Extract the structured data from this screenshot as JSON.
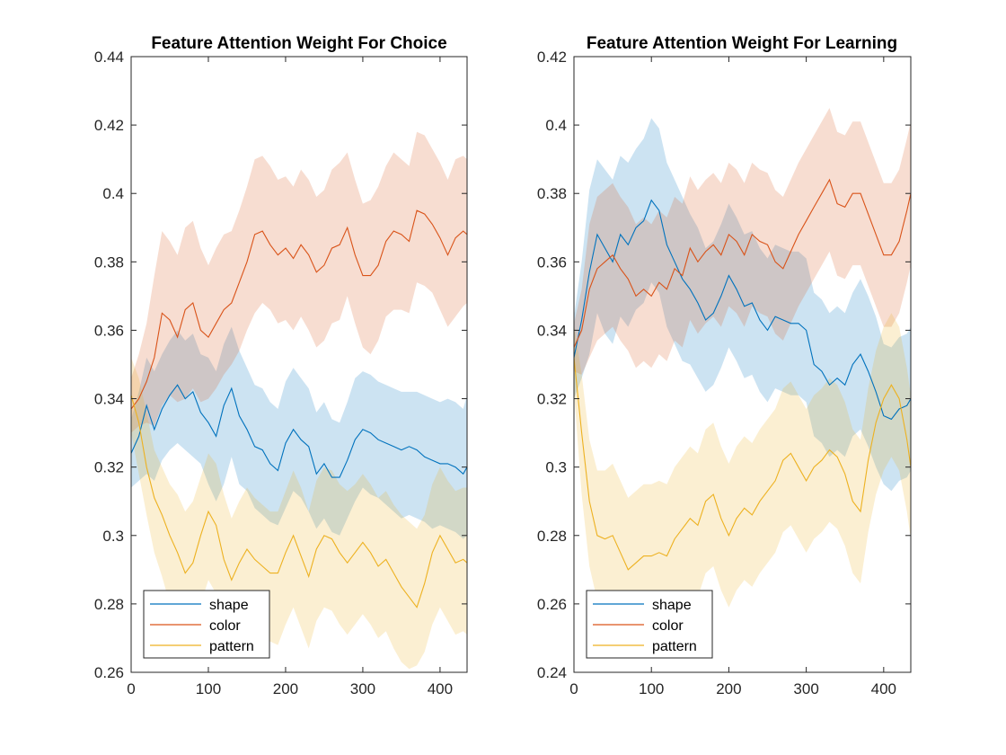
{
  "colors": {
    "shape": "#0072BD",
    "color": "#D95319",
    "pattern": "#EDB120",
    "axis": "#262626"
  },
  "chart_data": [
    {
      "type": "line",
      "title": "Feature Attention Weight For Choice",
      "xlabel": "",
      "ylabel": "",
      "xlim": [
        0,
        435
      ],
      "ylim": [
        0.26,
        0.44
      ],
      "xticks": [
        0,
        100,
        200,
        300,
        400
      ],
      "yticks": [
        0.26,
        0.28,
        0.3,
        0.32,
        0.34,
        0.36,
        0.38,
        0.4,
        0.42,
        0.44
      ],
      "ytick_labels": [
        "0.26",
        "0.28",
        "0.3",
        "0.32",
        "0.34",
        "0.36",
        "0.38",
        "0.4",
        "0.42",
        "0.44"
      ],
      "grid": false,
      "legend_position": "bottom-left",
      "shaded_bands": true,
      "x": [
        0,
        10,
        20,
        30,
        40,
        50,
        60,
        70,
        80,
        90,
        100,
        110,
        120,
        130,
        140,
        150,
        160,
        170,
        180,
        190,
        200,
        210,
        220,
        230,
        240,
        250,
        260,
        270,
        280,
        290,
        300,
        310,
        320,
        330,
        340,
        350,
        360,
        370,
        380,
        390,
        400,
        410,
        420,
        430,
        435
      ],
      "series": [
        {
          "name": "shape",
          "color_key": "shape",
          "values": [
            0.324,
            0.329,
            0.338,
            0.331,
            0.337,
            0.341,
            0.344,
            0.34,
            0.342,
            0.336,
            0.333,
            0.329,
            0.338,
            0.343,
            0.335,
            0.331,
            0.326,
            0.325,
            0.321,
            0.319,
            0.327,
            0.331,
            0.328,
            0.326,
            0.318,
            0.321,
            0.317,
            0.317,
            0.322,
            0.328,
            0.331,
            0.33,
            0.328,
            0.327,
            0.326,
            0.325,
            0.326,
            0.325,
            0.323,
            0.322,
            0.321,
            0.321,
            0.32,
            0.318,
            0.32
          ],
          "lower": [
            0.314,
            0.316,
            0.318,
            0.316,
            0.322,
            0.325,
            0.327,
            0.325,
            0.323,
            0.321,
            0.315,
            0.31,
            0.315,
            0.323,
            0.315,
            0.313,
            0.308,
            0.306,
            0.304,
            0.303,
            0.308,
            0.313,
            0.311,
            0.307,
            0.302,
            0.305,
            0.301,
            0.3,
            0.305,
            0.31,
            0.314,
            0.312,
            0.311,
            0.309,
            0.307,
            0.305,
            0.306,
            0.305,
            0.304,
            0.302,
            0.303,
            0.302,
            0.301,
            0.299,
            0.3
          ],
          "upper": [
            0.334,
            0.342,
            0.352,
            0.348,
            0.353,
            0.357,
            0.36,
            0.357,
            0.359,
            0.353,
            0.352,
            0.348,
            0.356,
            0.361,
            0.354,
            0.349,
            0.344,
            0.343,
            0.339,
            0.337,
            0.345,
            0.349,
            0.346,
            0.343,
            0.336,
            0.339,
            0.334,
            0.333,
            0.339,
            0.346,
            0.348,
            0.347,
            0.345,
            0.344,
            0.343,
            0.342,
            0.342,
            0.342,
            0.341,
            0.34,
            0.339,
            0.34,
            0.339,
            0.337,
            0.341
          ]
        },
        {
          "name": "color",
          "color_key": "color",
          "values": [
            0.337,
            0.34,
            0.345,
            0.352,
            0.365,
            0.363,
            0.358,
            0.366,
            0.368,
            0.36,
            0.358,
            0.362,
            0.366,
            0.368,
            0.374,
            0.38,
            0.388,
            0.389,
            0.385,
            0.382,
            0.384,
            0.381,
            0.385,
            0.382,
            0.377,
            0.379,
            0.384,
            0.385,
            0.39,
            0.382,
            0.376,
            0.376,
            0.379,
            0.386,
            0.389,
            0.388,
            0.386,
            0.395,
            0.394,
            0.391,
            0.387,
            0.382,
            0.387,
            0.389,
            0.388
          ],
          "lower": [
            0.33,
            0.332,
            0.333,
            0.332,
            0.338,
            0.341,
            0.339,
            0.34,
            0.343,
            0.339,
            0.34,
            0.343,
            0.347,
            0.35,
            0.354,
            0.36,
            0.365,
            0.368,
            0.366,
            0.362,
            0.363,
            0.36,
            0.364,
            0.36,
            0.355,
            0.357,
            0.362,
            0.363,
            0.37,
            0.362,
            0.355,
            0.353,
            0.357,
            0.364,
            0.366,
            0.366,
            0.365,
            0.374,
            0.373,
            0.371,
            0.366,
            0.361,
            0.364,
            0.367,
            0.368
          ],
          "upper": [
            0.346,
            0.353,
            0.362,
            0.376,
            0.389,
            0.386,
            0.382,
            0.39,
            0.392,
            0.384,
            0.379,
            0.384,
            0.388,
            0.389,
            0.395,
            0.402,
            0.41,
            0.411,
            0.408,
            0.404,
            0.405,
            0.402,
            0.407,
            0.404,
            0.399,
            0.401,
            0.407,
            0.409,
            0.412,
            0.404,
            0.397,
            0.398,
            0.402,
            0.408,
            0.412,
            0.41,
            0.408,
            0.418,
            0.417,
            0.413,
            0.409,
            0.404,
            0.41,
            0.411,
            0.41
          ]
        },
        {
          "name": "pattern",
          "color_key": "pattern",
          "values": [
            0.341,
            0.333,
            0.32,
            0.311,
            0.306,
            0.3,
            0.295,
            0.289,
            0.292,
            0.3,
            0.307,
            0.303,
            0.293,
            0.287,
            0.292,
            0.296,
            0.293,
            0.291,
            0.289,
            0.289,
            0.295,
            0.3,
            0.294,
            0.288,
            0.296,
            0.3,
            0.299,
            0.295,
            0.292,
            0.295,
            0.298,
            0.295,
            0.291,
            0.293,
            0.289,
            0.285,
            0.282,
            0.279,
            0.286,
            0.295,
            0.3,
            0.296,
            0.292,
            0.293,
            0.292
          ],
          "lower": [
            0.33,
            0.318,
            0.306,
            0.295,
            0.288,
            0.28,
            0.275,
            0.269,
            0.272,
            0.28,
            0.287,
            0.283,
            0.272,
            0.266,
            0.271,
            0.276,
            0.273,
            0.271,
            0.269,
            0.268,
            0.274,
            0.279,
            0.273,
            0.267,
            0.275,
            0.279,
            0.278,
            0.274,
            0.271,
            0.274,
            0.277,
            0.274,
            0.27,
            0.272,
            0.267,
            0.263,
            0.261,
            0.262,
            0.266,
            0.274,
            0.279,
            0.275,
            0.271,
            0.272,
            0.271
          ],
          "upper": [
            0.352,
            0.346,
            0.336,
            0.325,
            0.32,
            0.315,
            0.312,
            0.307,
            0.31,
            0.317,
            0.324,
            0.321,
            0.312,
            0.305,
            0.31,
            0.314,
            0.311,
            0.309,
            0.307,
            0.307,
            0.313,
            0.319,
            0.314,
            0.307,
            0.316,
            0.32,
            0.319,
            0.315,
            0.313,
            0.315,
            0.318,
            0.315,
            0.311,
            0.313,
            0.309,
            0.306,
            0.304,
            0.302,
            0.306,
            0.315,
            0.32,
            0.316,
            0.313,
            0.314,
            0.314
          ]
        }
      ]
    },
    {
      "type": "line",
      "title": "Feature Attention Weight For Learning",
      "xlabel": "",
      "ylabel": "",
      "xlim": [
        0,
        435
      ],
      "ylim": [
        0.24,
        0.42
      ],
      "xticks": [
        0,
        100,
        200,
        300,
        400
      ],
      "yticks": [
        0.24,
        0.26,
        0.28,
        0.3,
        0.32,
        0.34,
        0.36,
        0.38,
        0.4,
        0.42
      ],
      "ytick_labels": [
        "0.24",
        "0.26",
        "0.28",
        "0.3",
        "0.32",
        "0.34",
        "0.36",
        "0.38",
        "0.4",
        "0.42"
      ],
      "grid": false,
      "legend_position": "bottom-left",
      "shaded_bands": true,
      "x": [
        0,
        10,
        20,
        30,
        40,
        50,
        60,
        70,
        80,
        90,
        100,
        110,
        120,
        130,
        140,
        150,
        160,
        170,
        180,
        190,
        200,
        210,
        220,
        230,
        240,
        250,
        260,
        270,
        280,
        290,
        300,
        310,
        320,
        330,
        340,
        350,
        360,
        370,
        380,
        390,
        400,
        410,
        420,
        430,
        435
      ],
      "series": [
        {
          "name": "shape",
          "color_key": "shape",
          "values": [
            0.332,
            0.343,
            0.357,
            0.368,
            0.364,
            0.36,
            0.368,
            0.365,
            0.37,
            0.372,
            0.378,
            0.375,
            0.365,
            0.36,
            0.355,
            0.352,
            0.348,
            0.343,
            0.345,
            0.35,
            0.356,
            0.352,
            0.347,
            0.348,
            0.343,
            0.34,
            0.344,
            0.343,
            0.342,
            0.342,
            0.34,
            0.33,
            0.328,
            0.324,
            0.326,
            0.324,
            0.33,
            0.333,
            0.328,
            0.322,
            0.315,
            0.314,
            0.317,
            0.318,
            0.32
          ],
          "lower": [
            0.32,
            0.326,
            0.333,
            0.345,
            0.339,
            0.336,
            0.344,
            0.341,
            0.346,
            0.348,
            0.354,
            0.351,
            0.341,
            0.336,
            0.331,
            0.33,
            0.326,
            0.322,
            0.324,
            0.329,
            0.335,
            0.331,
            0.326,
            0.327,
            0.322,
            0.319,
            0.323,
            0.322,
            0.321,
            0.321,
            0.319,
            0.309,
            0.307,
            0.303,
            0.305,
            0.303,
            0.309,
            0.311,
            0.306,
            0.3,
            0.295,
            0.293,
            0.296,
            0.297,
            0.299
          ],
          "upper": [
            0.344,
            0.36,
            0.381,
            0.39,
            0.387,
            0.384,
            0.391,
            0.389,
            0.393,
            0.396,
            0.402,
            0.399,
            0.389,
            0.384,
            0.379,
            0.374,
            0.37,
            0.364,
            0.366,
            0.371,
            0.377,
            0.373,
            0.368,
            0.369,
            0.364,
            0.361,
            0.365,
            0.364,
            0.363,
            0.363,
            0.361,
            0.351,
            0.349,
            0.345,
            0.347,
            0.345,
            0.351,
            0.355,
            0.35,
            0.344,
            0.336,
            0.335,
            0.338,
            0.339,
            0.341
          ]
        },
        {
          "name": "color",
          "color_key": "color",
          "values": [
            0.335,
            0.34,
            0.352,
            0.358,
            0.36,
            0.362,
            0.358,
            0.355,
            0.35,
            0.352,
            0.35,
            0.354,
            0.352,
            0.358,
            0.356,
            0.364,
            0.36,
            0.363,
            0.365,
            0.362,
            0.368,
            0.366,
            0.362,
            0.368,
            0.366,
            0.365,
            0.36,
            0.358,
            0.363,
            0.368,
            0.372,
            0.376,
            0.38,
            0.384,
            0.377,
            0.376,
            0.38,
            0.38,
            0.374,
            0.368,
            0.362,
            0.362,
            0.366,
            0.375,
            0.38
          ],
          "lower": [
            0.328,
            0.327,
            0.332,
            0.337,
            0.339,
            0.341,
            0.337,
            0.334,
            0.329,
            0.331,
            0.329,
            0.333,
            0.331,
            0.337,
            0.335,
            0.343,
            0.339,
            0.342,
            0.344,
            0.341,
            0.347,
            0.345,
            0.341,
            0.347,
            0.345,
            0.344,
            0.339,
            0.337,
            0.342,
            0.347,
            0.351,
            0.355,
            0.359,
            0.363,
            0.356,
            0.355,
            0.359,
            0.359,
            0.353,
            0.347,
            0.341,
            0.341,
            0.345,
            0.354,
            0.359
          ],
          "upper": [
            0.342,
            0.352,
            0.371,
            0.379,
            0.381,
            0.383,
            0.379,
            0.376,
            0.371,
            0.373,
            0.371,
            0.375,
            0.373,
            0.379,
            0.377,
            0.385,
            0.381,
            0.384,
            0.386,
            0.383,
            0.389,
            0.387,
            0.383,
            0.389,
            0.387,
            0.386,
            0.381,
            0.379,
            0.384,
            0.389,
            0.393,
            0.397,
            0.401,
            0.405,
            0.398,
            0.397,
            0.401,
            0.401,
            0.395,
            0.389,
            0.383,
            0.383,
            0.387,
            0.396,
            0.401
          ]
        },
        {
          "name": "pattern",
          "color_key": "pattern",
          "values": [
            0.332,
            0.31,
            0.29,
            0.28,
            0.279,
            0.28,
            0.275,
            0.27,
            0.272,
            0.274,
            0.274,
            0.275,
            0.274,
            0.279,
            0.282,
            0.285,
            0.283,
            0.29,
            0.292,
            0.285,
            0.28,
            0.285,
            0.288,
            0.286,
            0.29,
            0.293,
            0.296,
            0.302,
            0.304,
            0.3,
            0.296,
            0.3,
            0.302,
            0.305,
            0.303,
            0.298,
            0.29,
            0.287,
            0.302,
            0.313,
            0.32,
            0.324,
            0.32,
            0.308,
            0.3
          ],
          "lower": [
            0.322,
            0.292,
            0.271,
            0.261,
            0.258,
            0.259,
            0.254,
            0.249,
            0.251,
            0.253,
            0.253,
            0.254,
            0.253,
            0.258,
            0.261,
            0.264,
            0.262,
            0.269,
            0.271,
            0.264,
            0.259,
            0.264,
            0.267,
            0.265,
            0.269,
            0.272,
            0.275,
            0.281,
            0.283,
            0.279,
            0.275,
            0.279,
            0.281,
            0.284,
            0.282,
            0.277,
            0.269,
            0.266,
            0.281,
            0.292,
            0.299,
            0.303,
            0.299,
            0.287,
            0.279
          ],
          "upper": [
            0.342,
            0.327,
            0.308,
            0.299,
            0.299,
            0.301,
            0.296,
            0.291,
            0.293,
            0.295,
            0.295,
            0.296,
            0.295,
            0.3,
            0.303,
            0.306,
            0.304,
            0.311,
            0.313,
            0.306,
            0.301,
            0.306,
            0.309,
            0.307,
            0.311,
            0.314,
            0.317,
            0.323,
            0.325,
            0.321,
            0.317,
            0.321,
            0.323,
            0.326,
            0.324,
            0.319,
            0.311,
            0.308,
            0.323,
            0.334,
            0.341,
            0.345,
            0.341,
            0.329,
            0.321
          ]
        }
      ]
    }
  ]
}
